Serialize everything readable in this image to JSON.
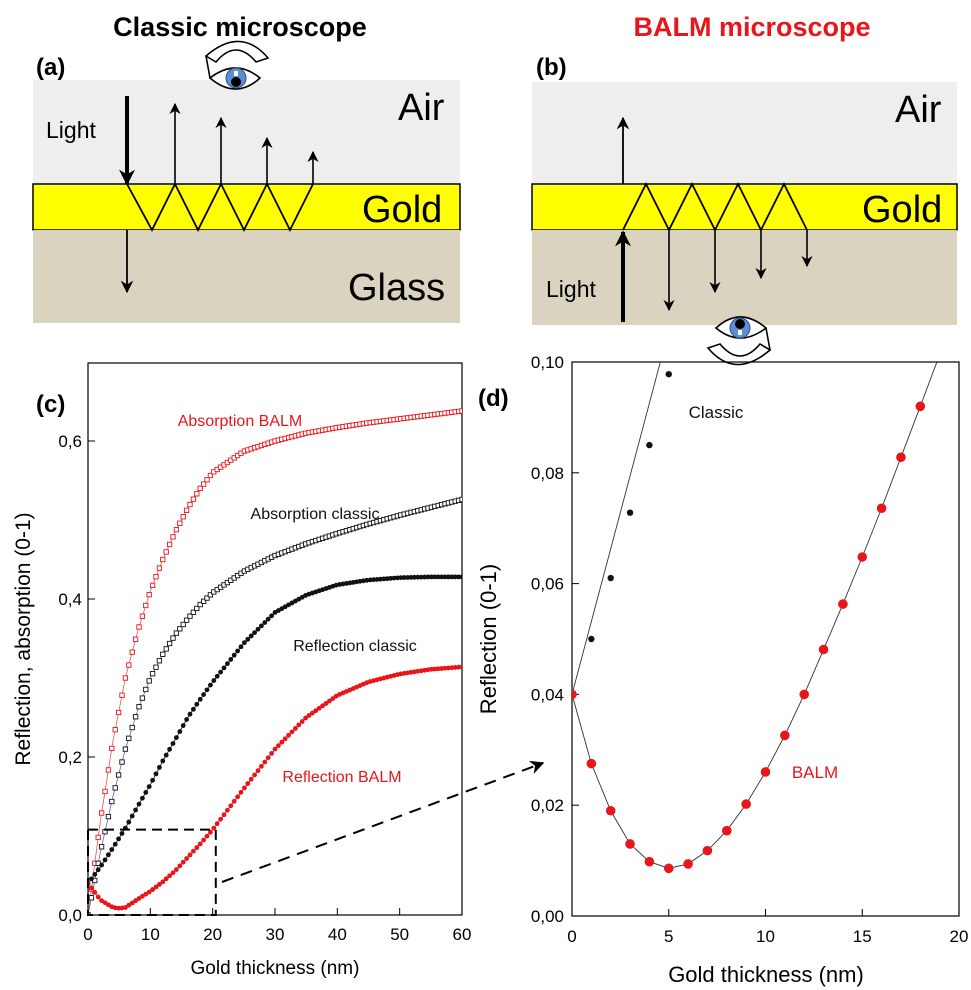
{
  "colors": {
    "air": "#eeeeee",
    "gold": "#ffff00",
    "glass": "#d9d3c0",
    "balm": "#e8151b",
    "balm_light": "#ee5555",
    "classic": "#111111",
    "arrow": "#000000",
    "eye_iris": "#5b8fd4",
    "blue_line": "#5a66cc"
  },
  "icons": [
    "eye-icon",
    "arrow-icon"
  ],
  "panel_a": {
    "heading": "Classic microscope",
    "label": "(a)",
    "air": "Air",
    "gold": "Gold",
    "glass": "Glass",
    "light": "Light"
  },
  "panel_b": {
    "heading": "BALM microscope",
    "label": "(b)",
    "air": "Air",
    "gold": "Gold",
    "light": "Light"
  },
  "chart_data": [
    {
      "panel": "(c)",
      "type": "scatter",
      "xlabel": "Gold thickness (nm)",
      "ylabel": "Reflection, absorption (0-1)",
      "xlim": [
        0,
        60
      ],
      "ylim": [
        0,
        0.7
      ],
      "xticks": [
        "0",
        "10",
        "20",
        "30",
        "40",
        "50",
        "60"
      ],
      "yticks": [
        "0,0",
        "0,2",
        "0,4",
        "0,6"
      ],
      "zoom_box": {
        "x": [
          0,
          20.5
        ],
        "y": [
          0,
          0.108
        ]
      },
      "series": [
        {
          "name": "Absorption BALM",
          "marker": "open-square",
          "color": "#e8151b",
          "x": [
            0,
            2,
            4,
            6,
            8,
            10,
            12,
            14,
            16,
            18,
            20,
            25,
            30,
            35,
            40,
            45,
            50,
            55,
            60
          ],
          "values": [
            0.0,
            0.12,
            0.22,
            0.3,
            0.36,
            0.41,
            0.45,
            0.485,
            0.515,
            0.54,
            0.56,
            0.587,
            0.6,
            0.61,
            0.617,
            0.623,
            0.628,
            0.633,
            0.638
          ]
        },
        {
          "name": "Absorption classic",
          "marker": "open-square",
          "color": "#111111",
          "x": [
            0,
            2,
            4,
            6,
            8,
            10,
            12,
            14,
            16,
            18,
            20,
            25,
            30,
            35,
            40,
            45,
            50,
            55,
            60
          ],
          "values": [
            0.0,
            0.08,
            0.15,
            0.21,
            0.26,
            0.3,
            0.33,
            0.355,
            0.375,
            0.393,
            0.408,
            0.435,
            0.455,
            0.47,
            0.483,
            0.495,
            0.506,
            0.516,
            0.526
          ]
        },
        {
          "name": "Reflection classic",
          "marker": "filled-circle",
          "color": "#111111",
          "x": [
            0,
            2,
            4,
            6,
            8,
            10,
            12,
            14,
            16,
            18,
            20,
            25,
            30,
            35,
            40,
            45,
            50,
            55,
            60
          ],
          "values": [
            0.04,
            0.061,
            0.085,
            0.11,
            0.138,
            0.165,
            0.195,
            0.222,
            0.25,
            0.273,
            0.295,
            0.344,
            0.383,
            0.405,
            0.418,
            0.424,
            0.427,
            0.428,
            0.428
          ]
        },
        {
          "name": "Reflection BALM",
          "marker": "filled-circle",
          "color": "#e8151b",
          "x": [
            0,
            2,
            4,
            5,
            6,
            8,
            10,
            12,
            14,
            16,
            18,
            20,
            25,
            30,
            35,
            40,
            45,
            50,
            55,
            60
          ],
          "values": [
            0.04,
            0.019,
            0.0095,
            0.0085,
            0.0095,
            0.02,
            0.03,
            0.042,
            0.056,
            0.073,
            0.09,
            0.108,
            0.16,
            0.21,
            0.25,
            0.278,
            0.295,
            0.305,
            0.311,
            0.314
          ]
        }
      ]
    },
    {
      "panel": "(d)",
      "type": "scatter",
      "xlabel": "Gold thickness (nm)",
      "ylabel": "Reflection (0-1)",
      "xlim": [
        0,
        20
      ],
      "ylim": [
        0,
        0.1
      ],
      "xticks": [
        "0",
        "5",
        "10",
        "15",
        "20"
      ],
      "yticks": [
        "0,00",
        "0,02",
        "0,04",
        "0,06",
        "0,08",
        "0,10"
      ],
      "series": [
        {
          "name": "Classic",
          "marker": "filled-circle",
          "color": "#111111",
          "x": [
            0,
            1,
            2,
            3,
            4,
            5
          ],
          "values": [
            0.04,
            0.05,
            0.061,
            0.0728,
            0.085,
            0.0978
          ]
        },
        {
          "name": "BALM",
          "marker": "filled-circle",
          "color": "#e8151b",
          "x": [
            0,
            1,
            2,
            3,
            4,
            5,
            6,
            7,
            8,
            9,
            10,
            11,
            12,
            13,
            14,
            15,
            16,
            17,
            18
          ],
          "values": [
            0.04,
            0.0275,
            0.019,
            0.013,
            0.0098,
            0.0086,
            0.0094,
            0.0118,
            0.0154,
            0.0202,
            0.026,
            0.0326,
            0.04,
            0.0481,
            0.0563,
            0.0648,
            0.0736,
            0.0828,
            0.092
          ]
        }
      ]
    }
  ]
}
